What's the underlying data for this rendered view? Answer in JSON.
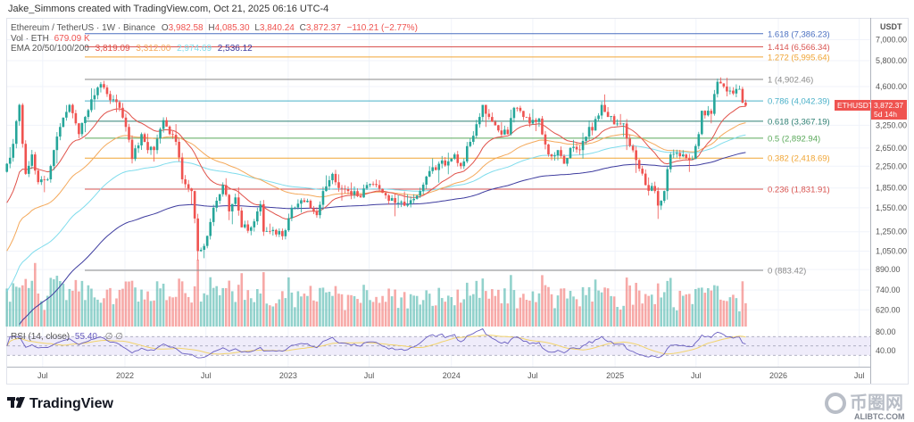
{
  "header": {
    "attribution": "Jake_Simmons created with TradingView.com, Oct 21, 2025 06:16 UTC-4"
  },
  "legend": {
    "symbol": "Ethereum / TetherUS · 1W · Binance",
    "open_label": "O",
    "open": "3,982.58",
    "high_label": "H",
    "high": "4,085.30",
    "low_label": "L",
    "low": "3,840.24",
    "close_label": "C",
    "close": "3,872.37",
    "change": "−110.21 (−2.77%)",
    "volume_label": "Vol · ETH",
    "volume": "679.09 K",
    "ema_label": "EMA 20/50/100/200",
    "ema20": "3,819.09",
    "ema50": "3,312.00",
    "ema100": "2,974.69",
    "ema200": "2,536.12"
  },
  "price_axis": {
    "currency": "USDT",
    "last_symbol": "ETHUSDT",
    "last_price": "3,872.37",
    "countdown": "5d 14h"
  },
  "rsi": {
    "label": "RSI (14, close)",
    "value": "55.40",
    "icons": "∅ ∅"
  },
  "branding": {
    "logo": "TradingView",
    "watermark": "币圈网",
    "watermark_sub": "ALIBTC.COM"
  },
  "colors": {
    "up": "#26a69a",
    "down": "#ef5350",
    "ema20": "#e0524a",
    "ema50": "#f4a95b",
    "ema100": "#7fdcec",
    "ema200": "#3d3b9e",
    "rsi": "#6a5fc1",
    "rsi_ma": "#f2d36b"
  },
  "chart_data": {
    "type": "candlestick",
    "title": "Ethereum / TetherUS · 1W · Binance",
    "scale": "log",
    "y_ticks": [
      "7,000.00",
      "5,800.00",
      "4,600.00",
      "3,250.00",
      "2,650.00",
      "2,250.00",
      "1,850.00",
      "1,550.00",
      "1,250.00",
      "1,050.00",
      "890.00",
      "740.00",
      "620.00"
    ],
    "y_tick_values": [
      7000,
      5800,
      4600,
      3250,
      2650,
      2250,
      1850,
      1550,
      1250,
      1050,
      890,
      740,
      620
    ],
    "rsi_ticks": [
      "80.00",
      "40.00"
    ],
    "rsi_tick_values": [
      80,
      40
    ],
    "x_ticks": [
      {
        "label": "Jul",
        "date": "2021-07-01"
      },
      {
        "label": "2022",
        "date": "2022-01-01"
      },
      {
        "label": "Jul",
        "date": "2022-07-01"
      },
      {
        "label": "2023",
        "date": "2023-01-01"
      },
      {
        "label": "Jul",
        "date": "2023-07-01"
      },
      {
        "label": "2024",
        "date": "2024-01-01"
      },
      {
        "label": "Jul",
        "date": "2024-07-01"
      },
      {
        "label": "2025",
        "date": "2025-01-01"
      },
      {
        "label": "Jul",
        "date": "2025-07-01"
      },
      {
        "label": "2026",
        "date": "2026-01-01"
      },
      {
        "label": "Jul",
        "date": "2026-07-01"
      }
    ],
    "fib_levels": [
      {
        "ratio": "1.618",
        "price": 7386.23,
        "label": "1.618 (7,386.23)",
        "color": "#4a6fc0"
      },
      {
        "ratio": "1.414",
        "price": 6566.34,
        "label": "1.414 (6,566.34)",
        "color": "#d9534f"
      },
      {
        "ratio": "1.272",
        "price": 5995.64,
        "label": "1.272 (5,995.64)",
        "color": "#f0a535"
      },
      {
        "ratio": "1",
        "price": 4902.46,
        "label": "1 (4,902.46)",
        "color": "#8a8a8a"
      },
      {
        "ratio": "0.786",
        "price": 4042.39,
        "label": "0.786 (4,042.39)",
        "color": "#49b0c8"
      },
      {
        "ratio": "0.618",
        "price": 3367.19,
        "label": "0.618 (3,367.19)",
        "color": "#2e7f73"
      },
      {
        "ratio": "0.5",
        "price": 2892.94,
        "label": "0.5 (2,892.94)",
        "color": "#5aa95a"
      },
      {
        "ratio": "0.382",
        "price": 2418.69,
        "label": "0.382 (2,418.69)",
        "color": "#f0a535"
      },
      {
        "ratio": "0.236",
        "price": 1831.91,
        "label": "0.236 (1,831.91)",
        "color": "#d9534f"
      },
      {
        "ratio": "0",
        "price": 883.42,
        "label": "0 (883.42)",
        "color": "#8a8a8a"
      }
    ],
    "last_candle": {
      "open": 3982.58,
      "high": 4085.3,
      "low": 3840.24,
      "close": 3872.37
    },
    "weekly_close_anchors": [
      [
        "2021-04-12",
        2300
      ],
      [
        "2021-04-26",
        2750
      ],
      [
        "2021-05-10",
        3900
      ],
      [
        "2021-05-17",
        2750
      ],
      [
        "2021-05-24",
        2100
      ],
      [
        "2021-06-07",
        2500
      ],
      [
        "2021-06-21",
        1950
      ],
      [
        "2021-07-12",
        2000
      ],
      [
        "2021-07-26",
        2600
      ],
      [
        "2021-08-09",
        3200
      ],
      [
        "2021-08-30",
        3900
      ],
      [
        "2021-09-20",
        3000
      ],
      [
        "2021-10-04",
        3500
      ],
      [
        "2021-10-18",
        4100
      ],
      [
        "2021-11-08",
        4700
      ],
      [
        "2021-11-22",
        4300
      ],
      [
        "2021-12-06",
        4100
      ],
      [
        "2021-12-20",
        3800
      ],
      [
        "2022-01-03",
        3200
      ],
      [
        "2022-01-17",
        2400
      ],
      [
        "2022-02-07",
        3000
      ],
      [
        "2022-02-21",
        2600
      ],
      [
        "2022-03-07",
        2600
      ],
      [
        "2022-03-28",
        3400
      ],
      [
        "2022-04-11",
        3000
      ],
      [
        "2022-04-25",
        2800
      ],
      [
        "2022-05-09",
        2000
      ],
      [
        "2022-05-30",
        1800
      ],
      [
        "2022-06-13",
        1050
      ],
      [
        "2022-06-27",
        1100
      ],
      [
        "2022-07-18",
        1550
      ],
      [
        "2022-08-08",
        1900
      ],
      [
        "2022-08-22",
        1500
      ],
      [
        "2022-09-05",
        1700
      ],
      [
        "2022-09-19",
        1300
      ],
      [
        "2022-10-10",
        1300
      ],
      [
        "2022-10-31",
        1600
      ],
      [
        "2022-11-07",
        1250
      ],
      [
        "2022-11-28",
        1270
      ],
      [
        "2022-12-19",
        1200
      ],
      [
        "2023-01-09",
        1550
      ],
      [
        "2023-02-13",
        1650
      ],
      [
        "2023-03-06",
        1450
      ],
      [
        "2023-03-20",
        1800
      ],
      [
        "2023-04-10",
        2100
      ],
      [
        "2023-04-24",
        1850
      ],
      [
        "2023-05-15",
        1800
      ],
      [
        "2023-06-12",
        1700
      ],
      [
        "2023-06-26",
        1900
      ],
      [
        "2023-07-17",
        1900
      ],
      [
        "2023-08-14",
        1650
      ],
      [
        "2023-09-04",
        1620
      ],
      [
        "2023-09-25",
        1600
      ],
      [
        "2023-10-23",
        1800
      ],
      [
        "2023-11-06",
        2050
      ],
      [
        "2023-12-04",
        2300
      ],
      [
        "2023-12-25",
        2350
      ],
      [
        "2024-01-08",
        2500
      ],
      [
        "2024-01-22",
        2250
      ],
      [
        "2024-02-12",
        2800
      ],
      [
        "2024-03-04",
        3500
      ],
      [
        "2024-03-11",
        3900
      ],
      [
        "2024-03-25",
        3500
      ],
      [
        "2024-04-15",
        3100
      ],
      [
        "2024-05-06",
        3000
      ],
      [
        "2024-05-20",
        3800
      ],
      [
        "2024-06-10",
        3500
      ],
      [
        "2024-06-24",
        3300
      ],
      [
        "2024-07-15",
        3450
      ],
      [
        "2024-08-05",
        2500
      ],
      [
        "2024-08-26",
        2600
      ],
      [
        "2024-09-09",
        2300
      ],
      [
        "2024-09-23",
        2650
      ],
      [
        "2024-10-14",
        2600
      ],
      [
        "2024-11-04",
        3200
      ],
      [
        "2024-11-11",
        3100
      ],
      [
        "2024-12-02",
        3900
      ],
      [
        "2024-12-16",
        3500
      ],
      [
        "2025-01-06",
        3300
      ],
      [
        "2025-01-20",
        3300
      ],
      [
        "2025-02-03",
        2700
      ],
      [
        "2025-02-24",
        2200
      ],
      [
        "2025-03-10",
        1900
      ],
      [
        "2025-03-31",
        1800
      ],
      [
        "2025-04-07",
        1580
      ],
      [
        "2025-04-21",
        1800
      ],
      [
        "2025-05-05",
        2500
      ],
      [
        "2025-06-02",
        2500
      ],
      [
        "2025-06-23",
        2400
      ],
      [
        "2025-07-07",
        3000
      ],
      [
        "2025-07-14",
        3700
      ],
      [
        "2025-08-04",
        3600
      ],
      [
        "2025-08-11",
        4300
      ],
      [
        "2025-08-18",
        4800
      ],
      [
        "2025-09-08",
        4400
      ],
      [
        "2025-09-29",
        4500
      ],
      [
        "2025-10-06",
        4500
      ],
      [
        "2025-10-13",
        3980
      ],
      [
        "2025-10-20",
        3872.37
      ]
    ]
  }
}
